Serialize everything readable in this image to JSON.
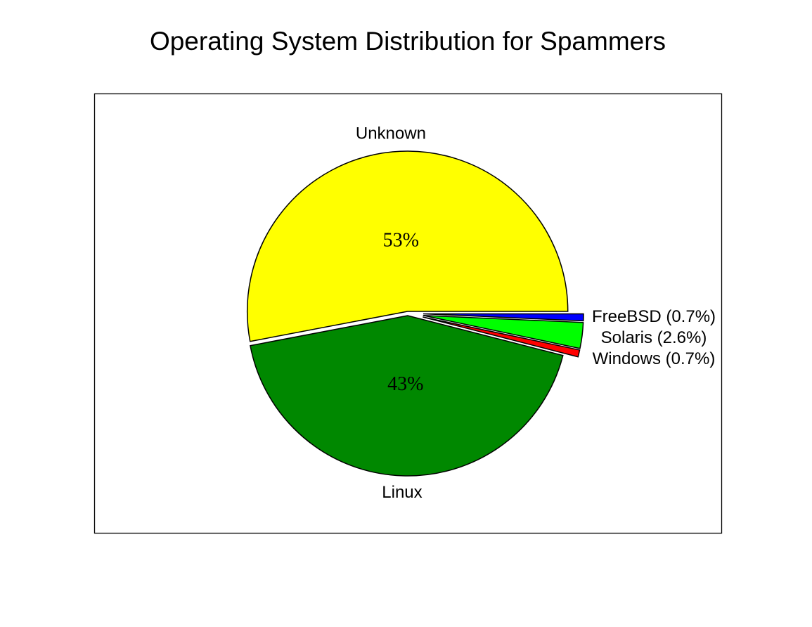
{
  "chart_data": {
    "type": "pie",
    "title": "Operating System Distribution for Spammers",
    "categories": [
      "Unknown",
      "Linux",
      "Windows (0.7%)",
      "Solaris (2.6%)",
      "FreeBSD (0.7%)"
    ],
    "values": [
      53,
      43,
      0.7,
      2.6,
      0.7
    ],
    "value_labels": [
      "53%",
      "43%",
      null,
      null,
      null
    ],
    "colors": [
      "#ffff00",
      "#008800",
      "#ff0000",
      "#00ff00",
      "#0000ff"
    ]
  }
}
